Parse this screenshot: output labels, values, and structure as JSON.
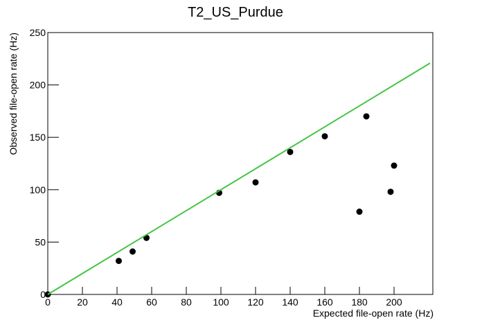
{
  "chart_data": {
    "type": "scatter",
    "title": "T2_US_Purdue",
    "x_label": "Expected file-open rate (Hz)",
    "y_label": "Observed file-open rate (Hz)",
    "xlim": [
      0,
      222.4
    ],
    "ylim": [
      0,
      250
    ],
    "xticks": [
      0,
      20,
      40,
      60,
      80,
      100,
      120,
      140,
      160,
      180,
      200
    ],
    "yticks": [
      0,
      50,
      100,
      150,
      200,
      250
    ],
    "grid": false,
    "series": [
      {
        "color": "#000000",
        "mode": "markers",
        "x": [
          0,
          41,
          49,
          57,
          99,
          120,
          140,
          160,
          180,
          184,
          198,
          200
        ],
        "values": [
          0,
          32,
          41,
          54,
          97,
          107,
          136,
          151,
          79,
          170,
          98,
          123
        ]
      },
      {
        "color": "#44c444",
        "mode": "line",
        "x": [
          0,
          220.8
        ],
        "values": [
          0,
          220.8
        ]
      }
    ]
  }
}
